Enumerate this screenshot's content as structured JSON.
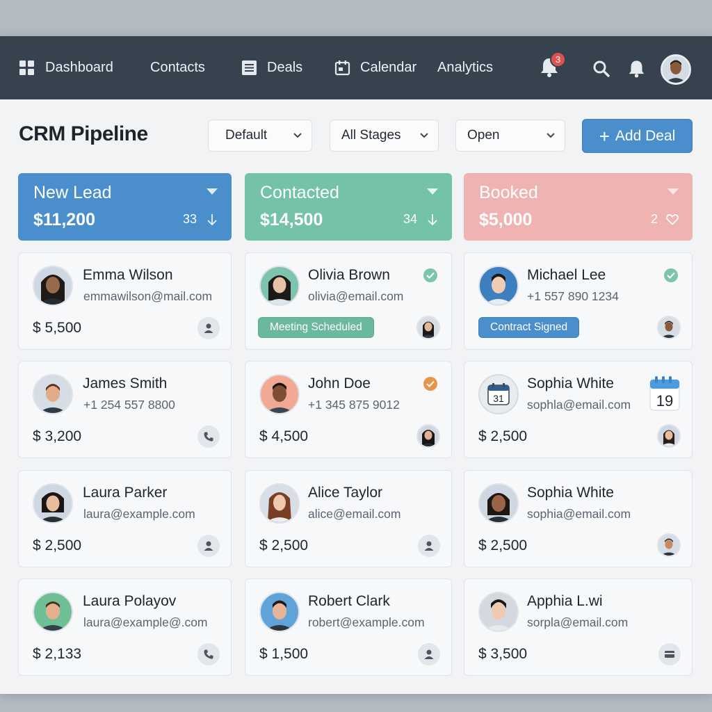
{
  "nav": {
    "items": [
      {
        "label": "Dashboard",
        "icon": "grid-icon"
      },
      {
        "label": "Contacts",
        "icon": ""
      },
      {
        "label": "Deals",
        "icon": "list-icon"
      },
      {
        "label": "Calendar",
        "icon": "calendar-icon"
      },
      {
        "label": "Analytics",
        "icon": ""
      }
    ],
    "notification_count": "3"
  },
  "page": {
    "title": "CRM Pipeline",
    "filters": [
      {
        "value": "Default"
      },
      {
        "value": "All Stages"
      },
      {
        "value": "Open"
      }
    ],
    "add_label": "Add Deal"
  },
  "columns": [
    {
      "name": "New Lead",
      "total": "$11,200",
      "count": "33",
      "color": "#4a8fcc",
      "cards": [
        {
          "name": "Emma Wilson",
          "sub": "emmawilson@mail.com",
          "amount": "$ 5,500",
          "action": "person-icon"
        },
        {
          "name": "James Smith",
          "sub": "+1 254 557 8800",
          "amount": "$ 3,200",
          "action": "phone-icon"
        },
        {
          "name": "Laura Parker",
          "sub": "laura@example.com",
          "amount": "$ 2,500",
          "action": "person-icon"
        },
        {
          "name": "Laura Polayov",
          "sub": "laura@example@.com",
          "amount": "$ 2,133",
          "action": "phone-icon"
        }
      ]
    },
    {
      "name": "Contacted",
      "total": "$14,500",
      "count": "34",
      "color": "#74c2a8",
      "cards": [
        {
          "name": "Olivia Brown",
          "sub": "olivia@email.com",
          "amount": "",
          "tag": "Meeting Scheduled",
          "status": "check-green"
        },
        {
          "name": "John Doe",
          "sub": "+1 345 875 9012",
          "amount": "$ 4,500",
          "status": "check-orange"
        },
        {
          "name": "Alice Taylor",
          "sub": "alice@email.com",
          "amount": "$ 2,500",
          "action": "person-icon"
        },
        {
          "name": "Robert Clark",
          "sub": "robert@example.com",
          "amount": "$ 1,500",
          "action": "person-icon"
        }
      ]
    },
    {
      "name": "Booked",
      "total": "$5,000",
      "count": "2",
      "color": "#efb4b1",
      "cards": [
        {
          "name": "Michael Lee",
          "sub": "+1 557 890 1234",
          "amount": "",
          "tag": "Contract Signed",
          "status": "check-green"
        },
        {
          "name": "Sophia White",
          "sub": "sophla@email.com",
          "amount": "$ 2,500",
          "calendar_day": "31",
          "badge_day": "19"
        },
        {
          "name": "Sophia White",
          "sub": "sophia@email.com",
          "amount": "$ 2,500"
        },
        {
          "name": "Apphia L.wi",
          "sub": "sorpla@email.com",
          "amount": "$ 3,500",
          "action": "card-icon"
        }
      ]
    }
  ],
  "colors": {
    "nav_bg": "#36434f",
    "accent_blue": "#4a8fcc",
    "accent_green": "#74c2a8",
    "accent_pink": "#efb4b1",
    "badge_red": "#e05252",
    "check_orange": "#e8954a"
  }
}
